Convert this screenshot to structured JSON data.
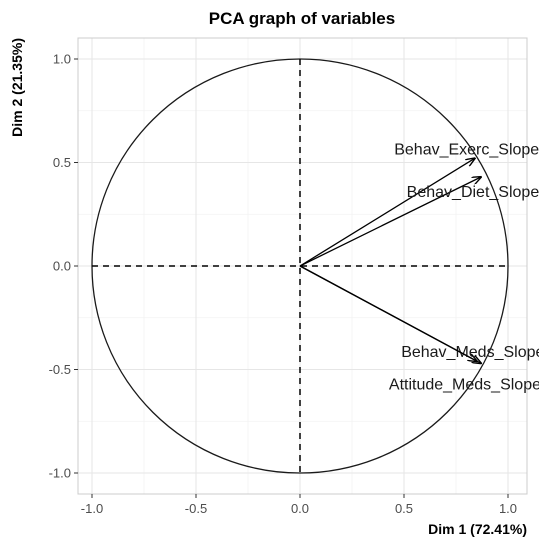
{
  "chart_data": {
    "type": "scatter",
    "title": "PCA graph of variables",
    "xlabel": "Dim 1 (72.41%)",
    "ylabel": "Dim 2 (21.35%)",
    "xlim": [
      -1.0,
      1.0
    ],
    "ylim": [
      -1.0,
      1.0
    ],
    "x_ticks": [
      "-1.0",
      "-0.5",
      "0.0",
      "0.5",
      "1.0"
    ],
    "y_ticks": [
      "-1.0",
      "-0.5",
      "0.0",
      "0.5",
      "1.0"
    ],
    "x_tick_values": [
      -1.0,
      -0.5,
      0.0,
      0.5,
      1.0
    ],
    "y_tick_values": [
      -1.0,
      -0.5,
      0.0,
      0.5,
      1.0
    ],
    "grid": true,
    "correlation_circle": true,
    "vectors": [
      {
        "name": "Behav_Exerc_Slope",
        "x": 0.84,
        "y": 0.52
      },
      {
        "name": "Behav_Diet_Slope",
        "x": 0.87,
        "y": 0.43
      },
      {
        "name": "Behav_Meds_Slope",
        "x": 0.85,
        "y": -0.46
      },
      {
        "name": "Attitude_Meds_Slope",
        "x": 0.87,
        "y": -0.47
      }
    ]
  }
}
